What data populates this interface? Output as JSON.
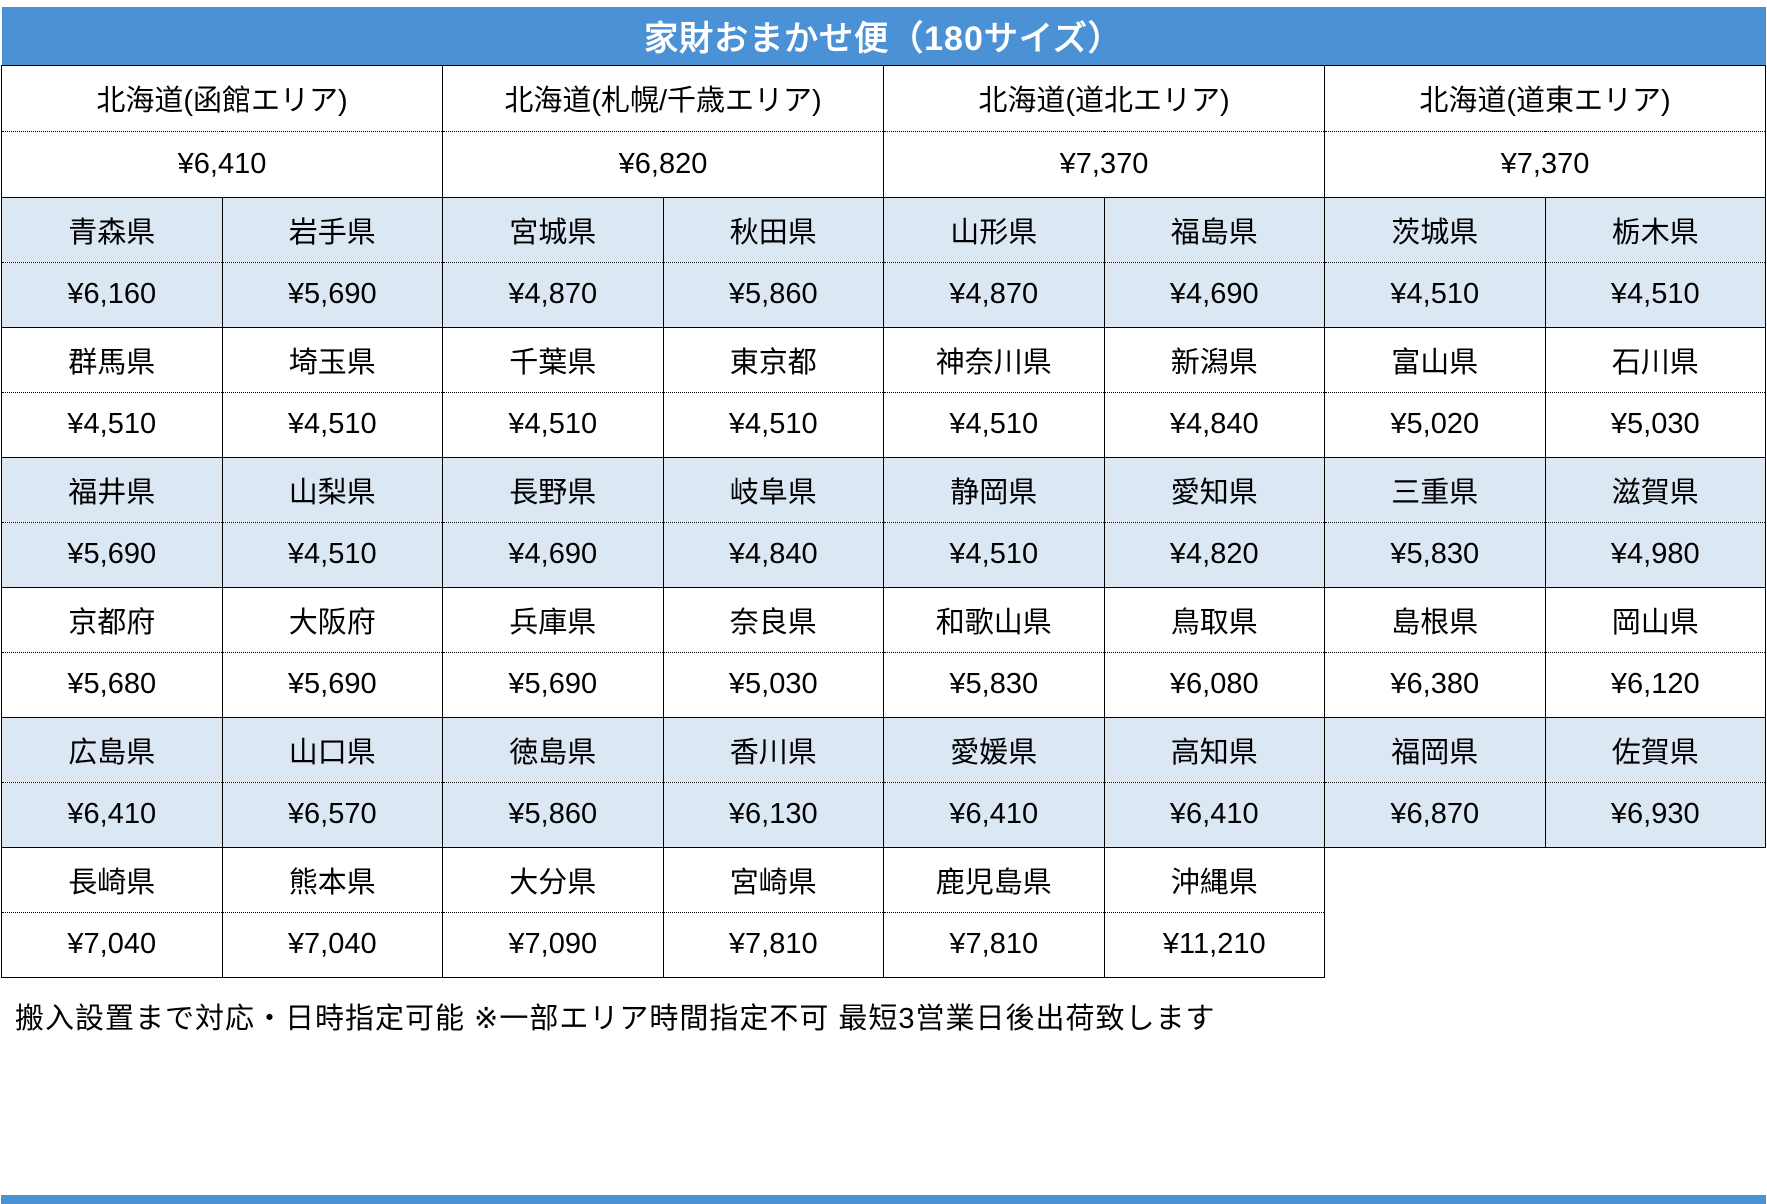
{
  "title": "家財おまかせ便（180サイズ）",
  "colors": {
    "header_bg": "#4a91d5",
    "shaded_row_bg": "#dbe7f3"
  },
  "region_header": [
    {
      "name": "北海道(函館エリア)",
      "price": "¥6,410"
    },
    {
      "name": "北海道(札幌/千歳エリア)",
      "price": "¥6,820"
    },
    {
      "name": "北海道(道北エリア)",
      "price": "¥7,370"
    },
    {
      "name": "北海道(道東エリア)",
      "price": "¥7,370"
    }
  ],
  "prefecture_blocks": [
    {
      "shaded": true,
      "cells": [
        {
          "name": "青森県",
          "price": "¥6,160"
        },
        {
          "name": "岩手県",
          "price": "¥5,690"
        },
        {
          "name": "宮城県",
          "price": "¥4,870"
        },
        {
          "name": "秋田県",
          "price": "¥5,860"
        },
        {
          "name": "山形県",
          "price": "¥4,870"
        },
        {
          "name": "福島県",
          "price": "¥4,690"
        },
        {
          "name": "茨城県",
          "price": "¥4,510"
        },
        {
          "name": "栃木県",
          "price": "¥4,510"
        }
      ]
    },
    {
      "shaded": false,
      "cells": [
        {
          "name": "群馬県",
          "price": "¥4,510"
        },
        {
          "name": "埼玉県",
          "price": "¥4,510"
        },
        {
          "name": "千葉県",
          "price": "¥4,510"
        },
        {
          "name": "東京都",
          "price": "¥4,510"
        },
        {
          "name": "神奈川県",
          "price": "¥4,510"
        },
        {
          "name": "新潟県",
          "price": "¥4,840"
        },
        {
          "name": "富山県",
          "price": "¥5,020"
        },
        {
          "name": "石川県",
          "price": "¥5,030"
        }
      ]
    },
    {
      "shaded": true,
      "cells": [
        {
          "name": "福井県",
          "price": "¥5,690"
        },
        {
          "name": "山梨県",
          "price": "¥4,510"
        },
        {
          "name": "長野県",
          "price": "¥4,690"
        },
        {
          "name": "岐阜県",
          "price": "¥4,840"
        },
        {
          "name": "静岡県",
          "price": "¥4,510"
        },
        {
          "name": "愛知県",
          "price": "¥4,820"
        },
        {
          "name": "三重県",
          "price": "¥5,830"
        },
        {
          "name": "滋賀県",
          "price": "¥4,980"
        }
      ]
    },
    {
      "shaded": false,
      "cells": [
        {
          "name": "京都府",
          "price": "¥5,680"
        },
        {
          "name": "大阪府",
          "price": "¥5,690"
        },
        {
          "name": "兵庫県",
          "price": "¥5,690"
        },
        {
          "name": "奈良県",
          "price": "¥5,030"
        },
        {
          "name": "和歌山県",
          "price": "¥5,830"
        },
        {
          "name": "鳥取県",
          "price": "¥6,080"
        },
        {
          "name": "島根県",
          "price": "¥6,380"
        },
        {
          "name": "岡山県",
          "price": "¥6,120"
        }
      ]
    },
    {
      "shaded": true,
      "cells": [
        {
          "name": "広島県",
          "price": "¥6,410"
        },
        {
          "name": "山口県",
          "price": "¥6,570"
        },
        {
          "name": "徳島県",
          "price": "¥5,860"
        },
        {
          "name": "香川県",
          "price": "¥6,130"
        },
        {
          "name": "愛媛県",
          "price": "¥6,410"
        },
        {
          "name": "高知県",
          "price": "¥6,410"
        },
        {
          "name": "福岡県",
          "price": "¥6,870"
        },
        {
          "name": "佐賀県",
          "price": "¥6,930"
        }
      ]
    },
    {
      "shaded": false,
      "cells": [
        {
          "name": "長崎県",
          "price": "¥7,040"
        },
        {
          "name": "熊本県",
          "price": "¥7,040"
        },
        {
          "name": "大分県",
          "price": "¥7,090"
        },
        {
          "name": "宮崎県",
          "price": "¥7,810"
        },
        {
          "name": "鹿児島県",
          "price": "¥7,810"
        },
        {
          "name": "沖縄県",
          "price": "¥11,210"
        }
      ]
    }
  ],
  "footer_note": "搬入設置まで対応・日時指定可能 ※一部エリア時間指定不可 最短3営業日後出荷致します",
  "columns": 8
}
